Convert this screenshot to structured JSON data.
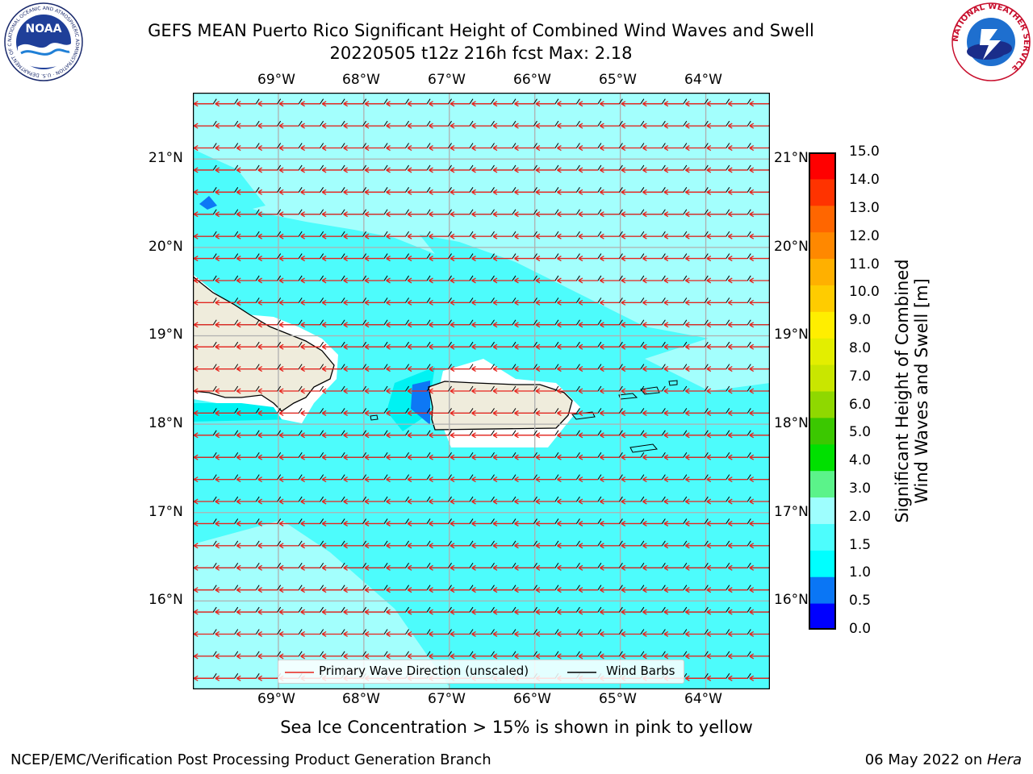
{
  "header": {
    "title_line1": "GEFS MEAN Puerto Rico Significant Height of Combined Wind Waves and Swell",
    "title_line2": "20220505 t12z 216h fcst   Max: 2.18",
    "noaa_logo_text": "NOAA",
    "noaa_ring_text": "NATIONAL OCEANIC AND ATMOSPHERIC ADMINISTRATION · U.S. DEPARTMENT OF COMMERCE",
    "nws_ring_text": "NATIONAL WEATHER SERVICE"
  },
  "map": {
    "lon_labels": [
      "69°W",
      "68°W",
      "67°W",
      "66°W",
      "65°W",
      "64°W"
    ],
    "lat_labels": [
      "21°N",
      "20°N",
      "19°N",
      "18°N",
      "17°N",
      "16°N"
    ],
    "lon_range": [
      -70.0,
      -63.25
    ],
    "lat_range": [
      15.0,
      21.75
    ],
    "primary_wave_direction": "E → W",
    "wind_barbs_from": "E",
    "colors": {
      "ocean_main": "#4dfcfc",
      "ocean_light": "#a3fffd",
      "ocean_strong": "#00f2f2",
      "land": "#efecdc",
      "local_low": "#0d78f5",
      "wave_arrow": "#e8231c",
      "barb": "#000000",
      "grid": "#b0b0b0"
    }
  },
  "legend": {
    "wave_label": "Primary Wave Direction (unscaled)",
    "barb_label": "Wind Barbs"
  },
  "colorbar": {
    "label_line1": "Significant Height of Combined",
    "label_line2": "Wind Waves and Swell [m]",
    "ticks": [
      "15.0",
      "14.0",
      "13.0",
      "12.0",
      "11.0",
      "10.0",
      "9.0",
      "8.0",
      "7.0",
      "6.0",
      "5.0",
      "4.0",
      "3.0",
      "2.0",
      "1.5",
      "1.0",
      "0.5",
      "0.0"
    ],
    "colors_bottom_to_top": [
      "#0000ff",
      "#0a76f5",
      "#00ffff",
      "#4dfdfd",
      "#9efefe",
      "#5bf38a",
      "#00e000",
      "#3bc800",
      "#8fd800",
      "#c9e600",
      "#e3ee00",
      "#ffee00",
      "#ffcc00",
      "#ffb000",
      "#ff8800",
      "#ff6600",
      "#ff3300",
      "#ff0000"
    ]
  },
  "notes": {
    "sea_ice": "Sea Ice Concentration > 15% is shown in pink to yellow"
  },
  "footer": {
    "left": "NCEP/EMC/Verification Post Processing Product Generation Branch",
    "right_prefix": "06 May 2022 on ",
    "right_italic": "Hera"
  }
}
